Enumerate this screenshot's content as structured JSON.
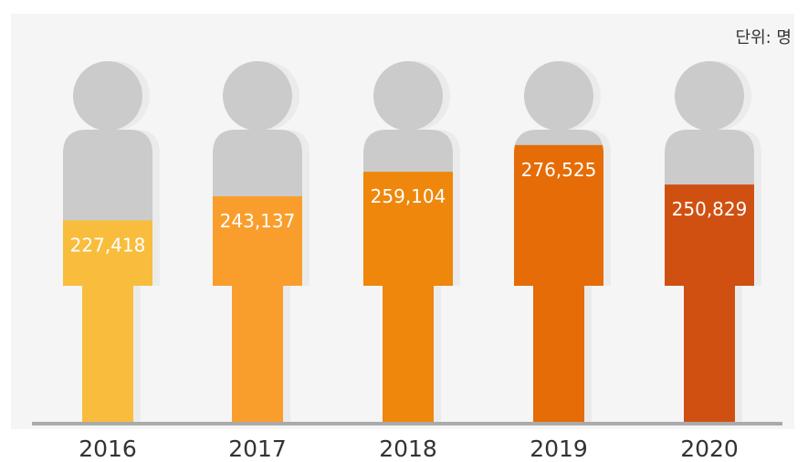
{
  "chart_data": {
    "type": "bar",
    "style": "pictogram-person-fill",
    "unit_label": "단위: 명",
    "categories": [
      "2016",
      "2017",
      "2018",
      "2019",
      "2020"
    ],
    "values": [
      227418,
      243137,
      259104,
      276525,
      250829
    ],
    "value_labels": [
      "227,418",
      "243,137",
      "259,104",
      "276,525",
      "250,829"
    ],
    "ylim": [
      95000,
      283000
    ],
    "grid": false,
    "legend": "none",
    "colors": {
      "bars": [
        "#F8BD3D",
        "#F99E2C",
        "#EE870B",
        "#E56C06",
        "#D05011"
      ],
      "silhouette": "#CBCBCB",
      "shadow": "#EBEBEB",
      "background": "#F5F5F5",
      "baseline": "#AAAAAA"
    }
  }
}
